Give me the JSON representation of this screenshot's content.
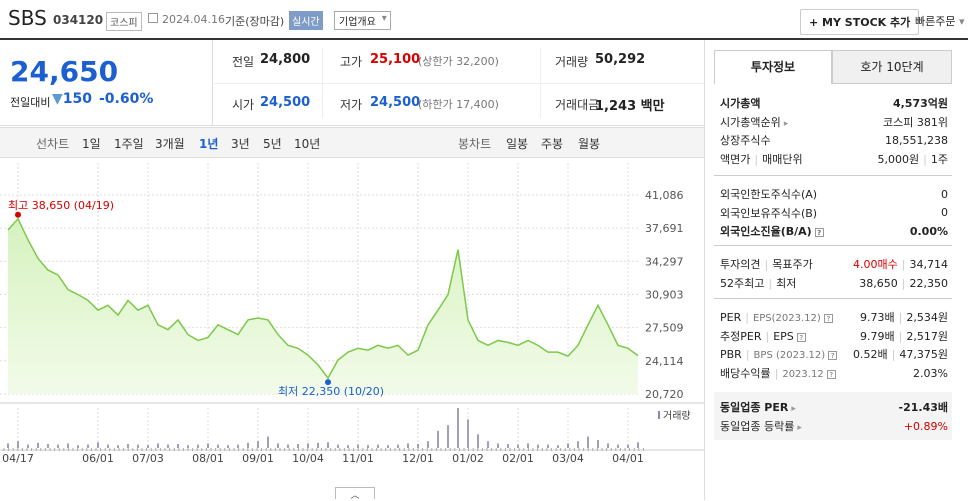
{
  "header": {
    "name": "SBS",
    "code": "034120",
    "market": "코스피",
    "date": "2024.04.16",
    "status": "기준(장마감)",
    "realtime": "실시간",
    "company": "기업개요",
    "mystock": "+ MY STOCK 추가",
    "quick": "빠른주문"
  },
  "quote": {
    "price": "24,650",
    "change_label": "전일대비",
    "change": "150",
    "change_rate": "-0.60%",
    "items": [
      {
        "label": "전일",
        "value": "24,800"
      },
      {
        "label": "고가",
        "value": "25,100",
        "extra": "(상한가 32,200)",
        "color": "#d60000"
      },
      {
        "label": "거래량",
        "value": "50,292"
      },
      {
        "label": "시가",
        "value": "24,500",
        "color": "#1b5fd0"
      },
      {
        "label": "저가",
        "value": "24,500",
        "extra": "(하한가 17,400)",
        "color": "#1b5fd0"
      },
      {
        "label": "거래대금",
        "value": "1,243 백만"
      }
    ]
  },
  "tabs": {
    "line_label": "선차트",
    "periods": [
      "1일",
      "1주일",
      "3개월",
      "1년",
      "3년",
      "5년",
      "10년"
    ],
    "active_period": 3,
    "candle_label": "봉차트",
    "candles": [
      "일봉",
      "주봉",
      "월봉"
    ]
  },
  "chart": {
    "type": "area",
    "color": "#7cc94a",
    "categories": [
      null,
      "04/17",
      null,
      null,
      null,
      null,
      null,
      null,
      null,
      "06/01",
      null,
      null,
      null,
      null,
      "07/03",
      null,
      null,
      null,
      null,
      null,
      "08/01",
      null,
      null,
      null,
      null,
      "09/01",
      null,
      null,
      null,
      null,
      "10/04",
      null,
      null,
      null,
      null,
      "11/01",
      null,
      null,
      null,
      null,
      null,
      "12/01",
      null,
      null,
      null,
      null,
      "01/02",
      null,
      null,
      null,
      null,
      "02/01",
      null,
      null,
      null,
      null,
      "03/04",
      null,
      null,
      null,
      null,
      null,
      "04/01",
      null
    ],
    "values": [
      37500,
      38650,
      36500,
      34600,
      33400,
      32900,
      31400,
      30900,
      30300,
      29300,
      29800,
      28800,
      30300,
      29300,
      29800,
      27800,
      27300,
      28300,
      26800,
      26200,
      26500,
      27800,
      27300,
      26800,
      28300,
      28500,
      28300,
      26800,
      25700,
      25400,
      24700,
      23700,
      22350,
      24200,
      25000,
      25400,
      25200,
      25700,
      25400,
      25700,
      24700,
      25200,
      27800,
      29300,
      30900,
      35500,
      28300,
      26200,
      25700,
      26200,
      26000,
      25700,
      26200,
      25700,
      25000,
      25000,
      24600,
      25700,
      27800,
      29800,
      27800,
      25700,
      25400,
      24650
    ],
    "volumes": [
      40000,
      60000,
      30000,
      45000,
      35000,
      30000,
      40000,
      25000,
      30000,
      50000,
      30000,
      25000,
      35000,
      30000,
      25000,
      40000,
      30000,
      35000,
      25000,
      30000,
      40000,
      30000,
      25000,
      30000,
      45000,
      60000,
      100000,
      40000,
      30000,
      35000,
      40000,
      45000,
      50000,
      30000,
      25000,
      30000,
      25000,
      30000,
      25000,
      30000,
      40000,
      35000,
      60000,
      150000,
      200000,
      350000,
      250000,
      120000,
      60000,
      40000,
      35000,
      30000,
      40000,
      30000,
      30000,
      25000,
      40000,
      60000,
      100000,
      70000,
      40000,
      30000,
      30000,
      50000
    ],
    "ylim": [
      20720,
      41086
    ],
    "yticks": [
      {
        "value": 41086,
        "label": "41,086"
      },
      {
        "value": 37691,
        "label": "37,691"
      },
      {
        "value": 34297,
        "label": "34,297"
      },
      {
        "value": 30903,
        "label": "30,903"
      },
      {
        "value": 27509,
        "label": "27,509"
      },
      {
        "value": 24114,
        "label": "24,114"
      },
      {
        "value": 20720,
        "label": "20,720"
      }
    ],
    "high_label": "최고 38,650 (04/19)",
    "low_label": "최저 22,350 (10/20)",
    "volume_label": "거래량"
  },
  "info": {
    "tabs": [
      "투자정보",
      "호가 10단계"
    ],
    "sections": [
      [
        {
          "labels": [
            "시가총액"
          ],
          "values": [
            "4,573억원"
          ],
          "strong": true
        },
        {
          "labels": [
            "시가총액순위"
          ],
          "values": [
            "코스피 381위"
          ],
          "arrow": true
        },
        {
          "labels": [
            "상장주식수"
          ],
          "values": [
            "18,551,238"
          ]
        },
        {
          "labels": [
            "액면가",
            "매매단위"
          ],
          "values": [
            "5,000원",
            "1주"
          ]
        }
      ],
      [
        {
          "labels": [
            "외국인한도주식수(A)"
          ],
          "values": [
            "0"
          ]
        },
        {
          "labels": [
            "외국인보유주식수(B)"
          ],
          "values": [
            "0"
          ]
        },
        {
          "labels": [
            "외국인소진율(B/A)"
          ],
          "values": [
            "0.00%"
          ],
          "strong": true,
          "help": true
        }
      ],
      [
        {
          "labels": [
            "투자의견",
            "목표주가"
          ],
          "values": [
            "4.00매수",
            "34,714"
          ],
          "red": 0
        },
        {
          "labels": [
            "52주최고",
            "최저"
          ],
          "values": [
            "38,650",
            "22,350"
          ]
        }
      ],
      [
        {
          "labels": [
            "PER",
            "EPS(2023.12)"
          ],
          "values": [
            "9.73배",
            "2,534원"
          ],
          "help": true
        },
        {
          "labels": [
            "추정PER",
            "EPS"
          ],
          "values": [
            "9.79배",
            "2,517원"
          ],
          "help": true
        },
        {
          "labels": [
            "PBR",
            "BPS (2023.12)"
          ],
          "values": [
            "0.52배",
            "47,375원"
          ],
          "help": true
        },
        {
          "labels": [
            "배당수익률",
            "2023.12"
          ],
          "values": [
            "2.03%"
          ],
          "help": true
        }
      ],
      [
        {
          "labels": [
            "동일업종 PER"
          ],
          "values": [
            "-21.43배"
          ],
          "strong": true,
          "arrow": true
        },
        {
          "labels": [
            "동일업종 등락률"
          ],
          "values": [
            "+0.89%"
          ],
          "arrow": true,
          "red": 0
        }
      ]
    ]
  }
}
